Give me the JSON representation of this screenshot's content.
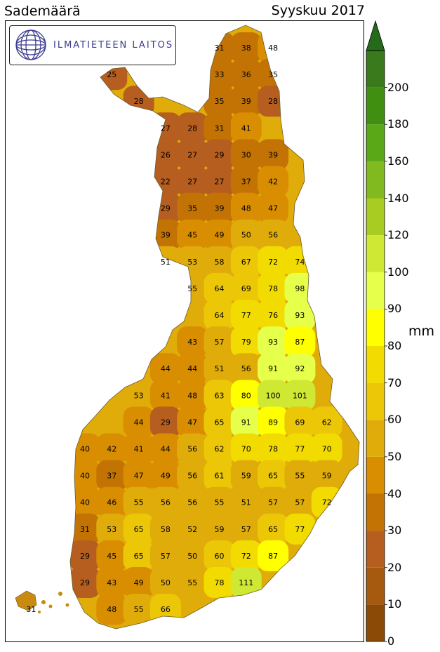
{
  "title_left": "Sademäärä",
  "title_right": "Syyskuu 2017",
  "logo": {
    "text": "ILMATIETEEN LAITOS",
    "icon": "fmi-globe-icon"
  },
  "colorbar": {
    "unit": "mm",
    "ticks": [
      "0",
      "10",
      "20",
      "30",
      "40",
      "50",
      "60",
      "70",
      "80",
      "90",
      "100",
      "120",
      "140",
      "160",
      "180",
      "200"
    ],
    "colors": [
      "#8b4a06",
      "#a55a10",
      "#b55e1f",
      "#c27304",
      "#d98d00",
      "#e0ac0a",
      "#ecc708",
      "#f2db00",
      "#ffff00",
      "#e6ff4a",
      "#cfe833",
      "#a8cc22",
      "#80ba1e",
      "#5aa818",
      "#418f10",
      "#3b7a1c"
    ],
    "top_color": "#25691a"
  },
  "map_values": [
    {
      "v": "31",
      "col": 5,
      "row": 0
    },
    {
      "v": "38",
      "col": 6,
      "row": 0
    },
    {
      "v": "48",
      "col": 7,
      "row": 0
    },
    {
      "v": "25",
      "col": 1,
      "row": 1
    },
    {
      "v": "33",
      "col": 5,
      "row": 1
    },
    {
      "v": "36",
      "col": 6,
      "row": 1
    },
    {
      "v": "35",
      "col": 7,
      "row": 1
    },
    {
      "v": "28",
      "col": 2,
      "row": 2
    },
    {
      "v": "35",
      "col": 5,
      "row": 2
    },
    {
      "v": "39",
      "col": 6,
      "row": 2
    },
    {
      "v": "28",
      "col": 7,
      "row": 2
    },
    {
      "v": "27",
      "col": 3,
      "row": 3
    },
    {
      "v": "28",
      "col": 4,
      "row": 3
    },
    {
      "v": "31",
      "col": 5,
      "row": 3
    },
    {
      "v": "41",
      "col": 6,
      "row": 3
    },
    {
      "v": "26",
      "col": 3,
      "row": 4
    },
    {
      "v": "27",
      "col": 4,
      "row": 4
    },
    {
      "v": "29",
      "col": 5,
      "row": 4
    },
    {
      "v": "30",
      "col": 6,
      "row": 4
    },
    {
      "v": "39",
      "col": 7,
      "row": 4
    },
    {
      "v": "22",
      "col": 3,
      "row": 5
    },
    {
      "v": "27",
      "col": 4,
      "row": 5
    },
    {
      "v": "27",
      "col": 5,
      "row": 5
    },
    {
      "v": "37",
      "col": 6,
      "row": 5
    },
    {
      "v": "42",
      "col": 7,
      "row": 5
    },
    {
      "v": "29",
      "col": 3,
      "row": 6
    },
    {
      "v": "35",
      "col": 4,
      "row": 6
    },
    {
      "v": "39",
      "col": 5,
      "row": 6
    },
    {
      "v": "48",
      "col": 6,
      "row": 6
    },
    {
      "v": "47",
      "col": 7,
      "row": 6
    },
    {
      "v": "39",
      "col": 3,
      "row": 7
    },
    {
      "v": "45",
      "col": 4,
      "row": 7
    },
    {
      "v": "49",
      "col": 5,
      "row": 7
    },
    {
      "v": "50",
      "col": 6,
      "row": 7
    },
    {
      "v": "56",
      "col": 7,
      "row": 7
    },
    {
      "v": "51",
      "col": 3,
      "row": 8
    },
    {
      "v": "53",
      "col": 4,
      "row": 8
    },
    {
      "v": "58",
      "col": 5,
      "row": 8
    },
    {
      "v": "67",
      "col": 6,
      "row": 8
    },
    {
      "v": "72",
      "col": 7,
      "row": 8
    },
    {
      "v": "74",
      "col": 8,
      "row": 8
    },
    {
      "v": "55",
      "col": 4,
      "row": 9
    },
    {
      "v": "64",
      "col": 5,
      "row": 9
    },
    {
      "v": "69",
      "col": 6,
      "row": 9
    },
    {
      "v": "78",
      "col": 7,
      "row": 9
    },
    {
      "v": "98",
      "col": 8,
      "row": 9
    },
    {
      "v": "64",
      "col": 5,
      "row": 10
    },
    {
      "v": "77",
      "col": 6,
      "row": 10
    },
    {
      "v": "76",
      "col": 7,
      "row": 10
    },
    {
      "v": "93",
      "col": 8,
      "row": 10
    },
    {
      "v": "43",
      "col": 4,
      "row": 11
    },
    {
      "v": "57",
      "col": 5,
      "row": 11
    },
    {
      "v": "79",
      "col": 6,
      "row": 11
    },
    {
      "v": "93",
      "col": 7,
      "row": 11
    },
    {
      "v": "87",
      "col": 8,
      "row": 11
    },
    {
      "v": "44",
      "col": 3,
      "row": 12
    },
    {
      "v": "44",
      "col": 4,
      "row": 12
    },
    {
      "v": "51",
      "col": 5,
      "row": 12
    },
    {
      "v": "56",
      "col": 6,
      "row": 12
    },
    {
      "v": "91",
      "col": 7,
      "row": 12
    },
    {
      "v": "92",
      "col": 8,
      "row": 12
    },
    {
      "v": "53",
      "col": 2,
      "row": 13
    },
    {
      "v": "41",
      "col": 3,
      "row": 13
    },
    {
      "v": "48",
      "col": 4,
      "row": 13
    },
    {
      "v": "63",
      "col": 5,
      "row": 13
    },
    {
      "v": "80",
      "col": 6,
      "row": 13
    },
    {
      "v": "100",
      "col": 7,
      "row": 13
    },
    {
      "v": "101",
      "col": 8,
      "row": 13
    },
    {
      "v": "44",
      "col": 2,
      "row": 14
    },
    {
      "v": "29",
      "col": 3,
      "row": 14
    },
    {
      "v": "47",
      "col": 4,
      "row": 14
    },
    {
      "v": "65",
      "col": 5,
      "row": 14
    },
    {
      "v": "91",
      "col": 6,
      "row": 14
    },
    {
      "v": "89",
      "col": 7,
      "row": 14
    },
    {
      "v": "69",
      "col": 8,
      "row": 14
    },
    {
      "v": "62",
      "col": 9,
      "row": 14
    },
    {
      "v": "40",
      "col": 0,
      "row": 15
    },
    {
      "v": "42",
      "col": 1,
      "row": 15
    },
    {
      "v": "41",
      "col": 2,
      "row": 15
    },
    {
      "v": "44",
      "col": 3,
      "row": 15
    },
    {
      "v": "56",
      "col": 4,
      "row": 15
    },
    {
      "v": "62",
      "col": 5,
      "row": 15
    },
    {
      "v": "70",
      "col": 6,
      "row": 15
    },
    {
      "v": "78",
      "col": 7,
      "row": 15
    },
    {
      "v": "77",
      "col": 8,
      "row": 15
    },
    {
      "v": "70",
      "col": 9,
      "row": 15
    },
    {
      "v": "40",
      "col": 0,
      "row": 16
    },
    {
      "v": "37",
      "col": 1,
      "row": 16
    },
    {
      "v": "47",
      "col": 2,
      "row": 16
    },
    {
      "v": "49",
      "col": 3,
      "row": 16
    },
    {
      "v": "56",
      "col": 4,
      "row": 16
    },
    {
      "v": "61",
      "col": 5,
      "row": 16
    },
    {
      "v": "59",
      "col": 6,
      "row": 16
    },
    {
      "v": "65",
      "col": 7,
      "row": 16
    },
    {
      "v": "55",
      "col": 8,
      "row": 16
    },
    {
      "v": "59",
      "col": 9,
      "row": 16
    },
    {
      "v": "40",
      "col": 0,
      "row": 17
    },
    {
      "v": "46",
      "col": 1,
      "row": 17
    },
    {
      "v": "55",
      "col": 2,
      "row": 17
    },
    {
      "v": "56",
      "col": 3,
      "row": 17
    },
    {
      "v": "56",
      "col": 4,
      "row": 17
    },
    {
      "v": "55",
      "col": 5,
      "row": 17
    },
    {
      "v": "51",
      "col": 6,
      "row": 17
    },
    {
      "v": "57",
      "col": 7,
      "row": 17
    },
    {
      "v": "57",
      "col": 8,
      "row": 17
    },
    {
      "v": "72",
      "col": 9,
      "row": 17
    },
    {
      "v": "31",
      "col": 0,
      "row": 18
    },
    {
      "v": "53",
      "col": 1,
      "row": 18
    },
    {
      "v": "65",
      "col": 2,
      "row": 18
    },
    {
      "v": "58",
      "col": 3,
      "row": 18
    },
    {
      "v": "52",
      "col": 4,
      "row": 18
    },
    {
      "v": "59",
      "col": 5,
      "row": 18
    },
    {
      "v": "57",
      "col": 6,
      "row": 18
    },
    {
      "v": "65",
      "col": 7,
      "row": 18
    },
    {
      "v": "77",
      "col": 8,
      "row": 18
    },
    {
      "v": "29",
      "col": 0,
      "row": 19
    },
    {
      "v": "45",
      "col": 1,
      "row": 19
    },
    {
      "v": "65",
      "col": 2,
      "row": 19
    },
    {
      "v": "57",
      "col": 3,
      "row": 19
    },
    {
      "v": "50",
      "col": 4,
      "row": 19
    },
    {
      "v": "60",
      "col": 5,
      "row": 19
    },
    {
      "v": "72",
      "col": 6,
      "row": 19
    },
    {
      "v": "87",
      "col": 7,
      "row": 19
    },
    {
      "v": "29",
      "col": 0,
      "row": 20
    },
    {
      "v": "43",
      "col": 1,
      "row": 20
    },
    {
      "v": "49",
      "col": 2,
      "row": 20
    },
    {
      "v": "50",
      "col": 3,
      "row": 20
    },
    {
      "v": "55",
      "col": 4,
      "row": 20
    },
    {
      "v": "78",
      "col": 5,
      "row": 20
    },
    {
      "v": "111",
      "col": 6,
      "row": 20
    },
    {
      "v": "31",
      "col": -2,
      "row": 21
    },
    {
      "v": "48",
      "col": 1,
      "row": 21
    },
    {
      "v": "55",
      "col": 2,
      "row": 21
    },
    {
      "v": "66",
      "col": 3,
      "row": 21
    }
  ]
}
